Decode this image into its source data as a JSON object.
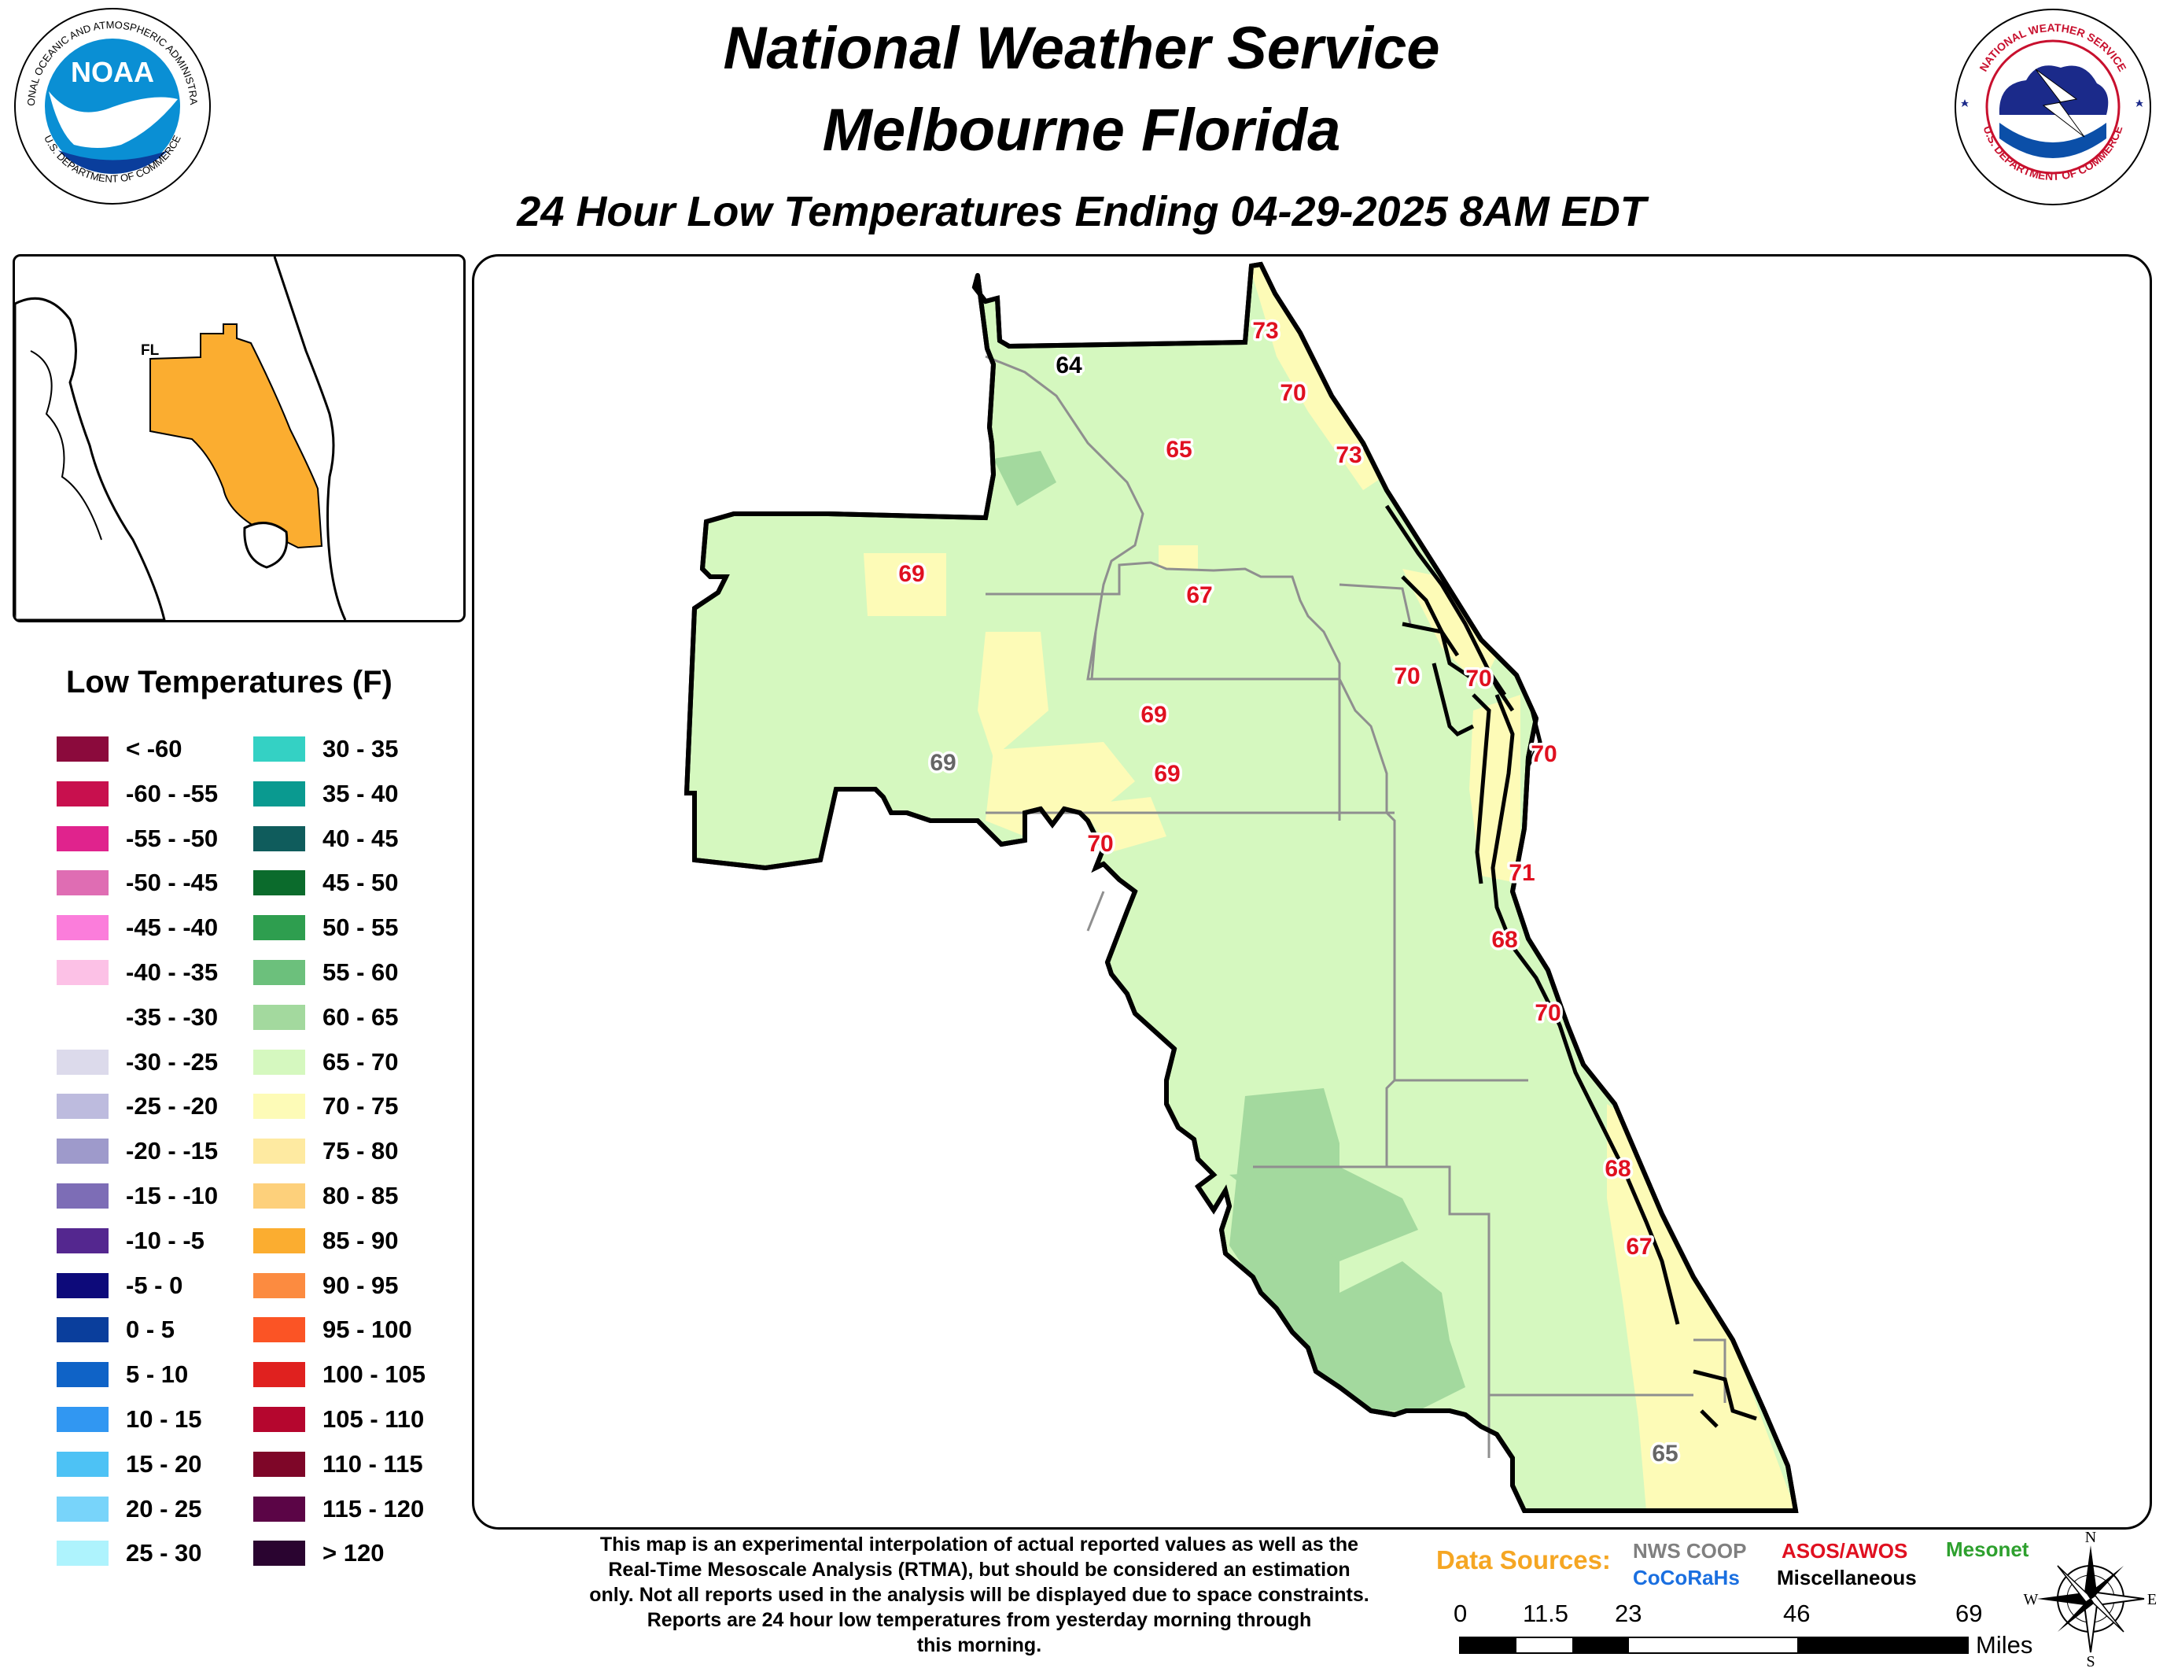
{
  "header": {
    "title_line1": "National Weather Service",
    "title_line2": "Melbourne Florida",
    "subtitle": "24 Hour Low Temperatures Ending 04-29-2025 8AM EDT",
    "noaa_logo_text": "NOAA",
    "noaa_ring_top": "NATIONAL OCEANIC AND ATMOSPHERIC ADMINISTRATION",
    "noaa_ring_bottom": "U.S. DEPARTMENT OF COMMERCE",
    "nws_ring_top": "NATIONAL WEATHER SERVICE",
    "nws_ring_bottom": "U.S. DEPARTMENT OF COMMERCE"
  },
  "inset": {
    "state_label": "FL"
  },
  "legend": {
    "title": "Low Temperatures (F)",
    "items": [
      {
        "label": "< -60",
        "color": "#8b0a3c"
      },
      {
        "label": "-60 - -55",
        "color": "#c8104e"
      },
      {
        "label": "-55 - -50",
        "color": "#e0238d"
      },
      {
        "label": "-50 - -45",
        "color": "#df6db3"
      },
      {
        "label": "-45 - -40",
        "color": "#fb7ddb"
      },
      {
        "label": "-40 - -35",
        "color": "#fcc1e6"
      },
      {
        "label": "-35 - -30",
        "color": "#ffffff"
      },
      {
        "label": "-30 - -25",
        "color": "#dcdaeb"
      },
      {
        "label": "-25 - -20",
        "color": "#bdbbde"
      },
      {
        "label": "-20 - -15",
        "color": "#9e9acb"
      },
      {
        "label": "-15 - -10",
        "color": "#7d6db6"
      },
      {
        "label": "-10 - -5",
        "color": "#54278f"
      },
      {
        "label": "-5 - 0",
        "color": "#0d0a7a"
      },
      {
        "label": "0 - 5",
        "color": "#0a3e9c"
      },
      {
        "label": "5 - 10",
        "color": "#0f63c7"
      },
      {
        "label": "10 - 15",
        "color": "#3197f2"
      },
      {
        "label": "15 - 20",
        "color": "#4dc2f5"
      },
      {
        "label": "20 - 25",
        "color": "#78d4fa"
      },
      {
        "label": "25 - 30",
        "color": "#aef3fd"
      },
      {
        "label": "30 - 35",
        "color": "#34d1c4"
      },
      {
        "label": "35 - 40",
        "color": "#0a9a90"
      },
      {
        "label": "40 - 45",
        "color": "#0f5c5c"
      },
      {
        "label": "45 - 50",
        "color": "#0b6b2c"
      },
      {
        "label": "50 - 55",
        "color": "#2e9e4f"
      },
      {
        "label": "55 - 60",
        "color": "#6cc07c"
      },
      {
        "label": "60 - 65",
        "color": "#a3d99e"
      },
      {
        "label": "65 - 70",
        "color": "#d5f8bf"
      },
      {
        "label": "70 - 75",
        "color": "#fdfbb7"
      },
      {
        "label": "75 - 80",
        "color": "#feeaa1"
      },
      {
        "label": "80 - 85",
        "color": "#fdd07b"
      },
      {
        "label": "85 - 90",
        "color": "#fbad30"
      },
      {
        "label": "90 - 95",
        "color": "#fc8b40"
      },
      {
        "label": "95 - 100",
        "color": "#fb5425"
      },
      {
        "label": "100 - 105",
        "color": "#e0211f"
      },
      {
        "label": "105 - 110",
        "color": "#b5062e"
      },
      {
        "label": "110 - 115",
        "color": "#7e0628"
      },
      {
        "label": "115 - 120",
        "color": "#5b0546"
      },
      {
        "label": "> 120",
        "color": "#2a0430"
      }
    ]
  },
  "stations": [
    {
      "value": "64",
      "color": "#000000"
    },
    {
      "value": "73",
      "color": "#e01020"
    },
    {
      "value": "70",
      "color": "#e01020"
    },
    {
      "value": "73",
      "color": "#e01020"
    },
    {
      "value": "65",
      "color": "#e01020"
    },
    {
      "value": "69",
      "color": "#e01020"
    },
    {
      "value": "67",
      "color": "#e01020"
    },
    {
      "value": "70",
      "color": "#e01020"
    },
    {
      "value": "70",
      "color": "#e01020"
    },
    {
      "value": "69",
      "color": "#e01020"
    },
    {
      "value": "70",
      "color": "#e01020"
    },
    {
      "value": "69",
      "color": "#666666"
    },
    {
      "value": "69",
      "color": "#e01020"
    },
    {
      "value": "70",
      "color": "#e01020"
    },
    {
      "value": "71",
      "color": "#e01020"
    },
    {
      "value": "68",
      "color": "#e01020"
    },
    {
      "value": "70",
      "color": "#e01020"
    },
    {
      "value": "68",
      "color": "#e01020"
    },
    {
      "value": "67",
      "color": "#e01020"
    },
    {
      "value": "65",
      "color": "#666666"
    }
  ],
  "disclaimer": [
    "This map is an experimental interpolation of actual reported values as well as the",
    "Real-Time Mesoscale Analysis (RTMA), but should be considered an estimation",
    "only. Not all reports used in the analysis will be displayed due to space constraints.",
    "Reports are 24 hour low temperatures from yesterday morning through",
    "this morning."
  ],
  "data_sources": {
    "label": "Data Sources:",
    "nws_coop": "NWS COOP",
    "cocorahs": "CoCoRaHs",
    "asos_awos": "ASOS/AWOS",
    "misc": "Miscellaneous",
    "mesonet": "Mesonet",
    "colors": {
      "label": "#f5a623",
      "nws_coop": "#808080",
      "cocorahs": "#1a6fe0",
      "asos_awos": "#e01020",
      "misc": "#000000",
      "mesonet": "#2ea02e"
    }
  },
  "scale": {
    "ticks": [
      "0",
      "11.5",
      "23",
      "46",
      "69"
    ],
    "unit": "Miles"
  },
  "compass": {
    "n": "N",
    "s": "S",
    "e": "E",
    "w": "W"
  }
}
